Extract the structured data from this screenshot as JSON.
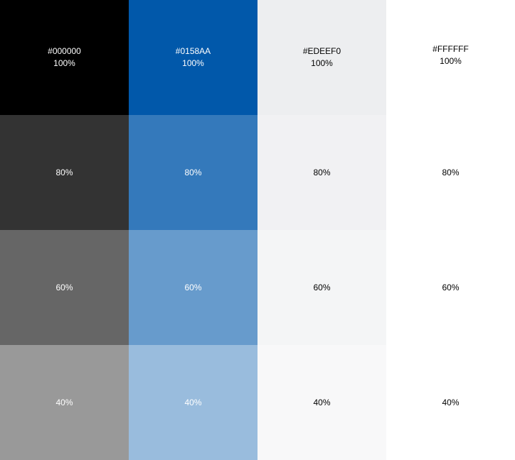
{
  "colors": {
    "black": "#000000",
    "blue": "#0158AA",
    "light": "#EDEEF0",
    "white": "#FFFFFF"
  },
  "columns": [
    {
      "hex": "#000000",
      "text_color": "#FFFFFF",
      "shades": [
        {
          "label": "100%",
          "opacity": 1.0
        },
        {
          "label": "80%",
          "opacity": 0.8
        },
        {
          "label": "60%",
          "opacity": 0.6
        },
        {
          "label": "40%",
          "opacity": 0.4
        }
      ]
    },
    {
      "hex": "#0158AA",
      "text_color": "#FFFFFF",
      "shades": [
        {
          "label": "100%",
          "opacity": 1.0
        },
        {
          "label": "80%",
          "opacity": 0.8
        },
        {
          "label": "60%",
          "opacity": 0.6
        },
        {
          "label": "40%",
          "opacity": 0.4
        }
      ]
    },
    {
      "hex": "#EDEEF0",
      "text_color": "#000000",
      "shades": [
        {
          "label": "100%",
          "opacity": 1.0
        },
        {
          "label": "80%",
          "opacity": 0.8
        },
        {
          "label": "60%",
          "opacity": 0.6
        },
        {
          "label": "40%",
          "opacity": 0.4
        }
      ]
    },
    {
      "hex": "#FFFFFF",
      "text_color": "#000000",
      "shades": [
        {
          "label": "100%",
          "opacity": 1.0
        },
        {
          "label": "80%",
          "opacity": 0.8
        },
        {
          "label": "60%",
          "opacity": 0.6
        },
        {
          "label": "40%",
          "opacity": 0.4
        }
      ]
    }
  ]
}
